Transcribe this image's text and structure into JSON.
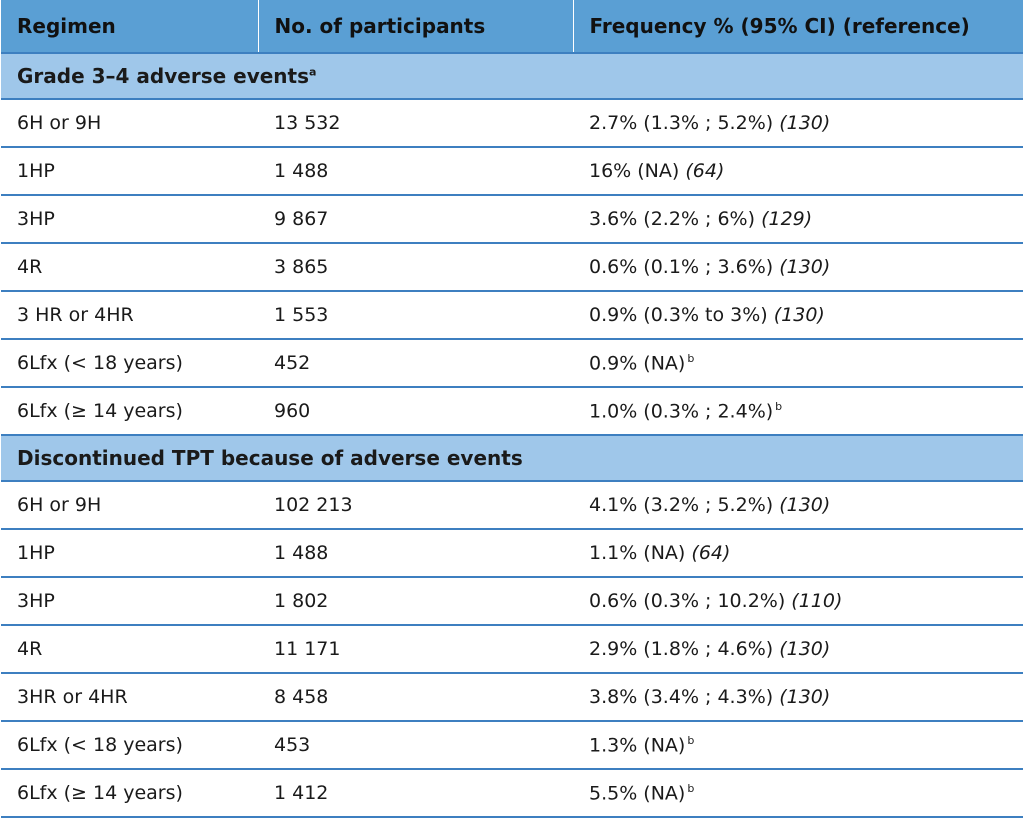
{
  "table": {
    "headers": [
      "Regimen",
      "No. of participants",
      "Frequency % (95% CI) (reference)"
    ],
    "sections": [
      {
        "title": "Grade 3–4 adverse events",
        "title_sup": "a",
        "rows": [
          {
            "regimen": "6H or 9H",
            "participants": "13 532",
            "frequency": "2.7% (1.3% ; 5.2%)",
            "ref": "(130)",
            "fn": ""
          },
          {
            "regimen": "1HP",
            "participants": "1 488",
            "frequency": "16% (NA)",
            "ref": "(64)",
            "fn": ""
          },
          {
            "regimen": "3HP",
            "participants": "9 867",
            "frequency": "3.6% (2.2% ; 6%)",
            "ref": "(129)",
            "fn": ""
          },
          {
            "regimen": "4R",
            "participants": "3 865",
            "frequency": "0.6% (0.1% ; 3.6%)",
            "ref": "(130)",
            "fn": ""
          },
          {
            "regimen": "3 HR or 4HR",
            "participants": "1 553",
            "frequency": "0.9% (0.3% to 3%)",
            "ref": "(130)",
            "fn": ""
          },
          {
            "regimen": "6Lfx (< 18 years)",
            "participants": "452",
            "frequency": "0.9% (NA)",
            "ref": "",
            "fn": "b"
          },
          {
            "regimen": "6Lfx (≥ 14 years)",
            "participants": "960",
            "frequency": "1.0% (0.3% ; 2.4%)",
            "ref": "",
            "fn": "b"
          }
        ]
      },
      {
        "title": "Discontinued TPT because of adverse events",
        "title_sup": "",
        "rows": [
          {
            "regimen": "6H or 9H",
            "participants": "102 213",
            "frequency": "4.1% (3.2% ; 5.2%)",
            "ref": "(130)",
            "fn": ""
          },
          {
            "regimen": "1HP",
            "participants": "1 488",
            "frequency": "1.1% (NA)",
            "ref": "(64)",
            "fn": ""
          },
          {
            "regimen": "3HP",
            "participants": "1 802",
            "frequency": "0.6% (0.3% ; 10.2%)",
            "ref": "(110)",
            "fn": ""
          },
          {
            "regimen": "4R",
            "participants": "11 171",
            "frequency": "2.9% (1.8% ; 4.6%)",
            "ref": "(130)",
            "fn": ""
          },
          {
            "regimen": "3HR or 4HR",
            "participants": "8 458",
            "frequency": "3.8% (3.4% ; 4.3%)",
            "ref": "(130)",
            "fn": ""
          },
          {
            "regimen": "6Lfx (< 18 years)",
            "participants": "453",
            "frequency": "1.3% (NA)",
            "ref": "",
            "fn": "b"
          },
          {
            "regimen": "6Lfx (≥ 14 years)",
            "participants": "1 412",
            "frequency": "5.5% (NA)",
            "ref": "",
            "fn": "b"
          }
        ]
      }
    ]
  }
}
